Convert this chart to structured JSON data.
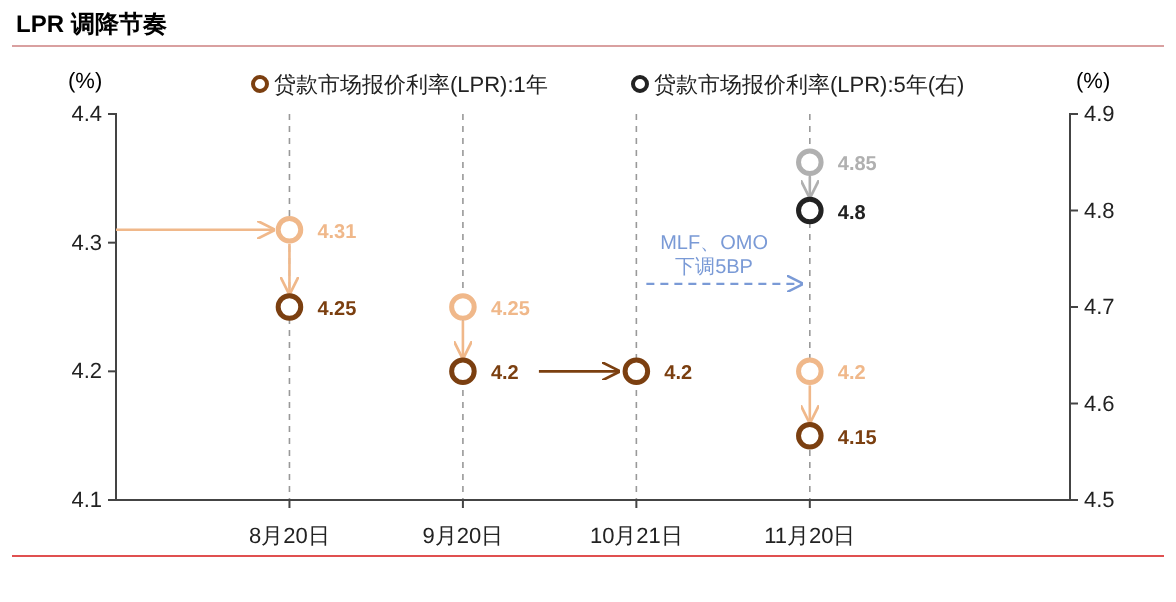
{
  "chart_data": {
    "type": "scatter",
    "title": "LPR 调降节奏",
    "ylabel": "(%)",
    "y2label": "(%)",
    "categories": [
      "8月20日",
      "9月20日",
      "10月21日",
      "11月20日"
    ],
    "series": [
      {
        "color": "#f0b88a",
        "values": [
          4.31,
          4.25,
          null,
          4.2
        ]
      },
      {
        "name": "贷款市场报价利率(LPR):1年",
        "color": "#7b3f10",
        "values": [
          4.25,
          4.2,
          4.2,
          4.15
        ]
      },
      {
        "color": "#b0b0b0",
        "axis": "y2",
        "values": [
          null,
          null,
          null,
          4.85
        ]
      },
      {
        "name": "贷款市场报价利率(LPR):5年(右)",
        "color": "#222222",
        "axis": "y2",
        "values": [
          null,
          null,
          null,
          4.8
        ]
      }
    ],
    "ylim": [
      4.1,
      4.4
    ],
    "yticks": [
      4.1,
      4.2,
      4.3,
      4.4
    ],
    "y2lim": [
      4.5,
      4.9
    ],
    "y2ticks": [
      4.5,
      4.6,
      4.7,
      4.8,
      4.9
    ],
    "grid": "x",
    "legend": "top",
    "marker": "circle",
    "data_labels": true,
    "annotations": [
      "MLF、OMO\n下调5BP"
    ]
  }
}
